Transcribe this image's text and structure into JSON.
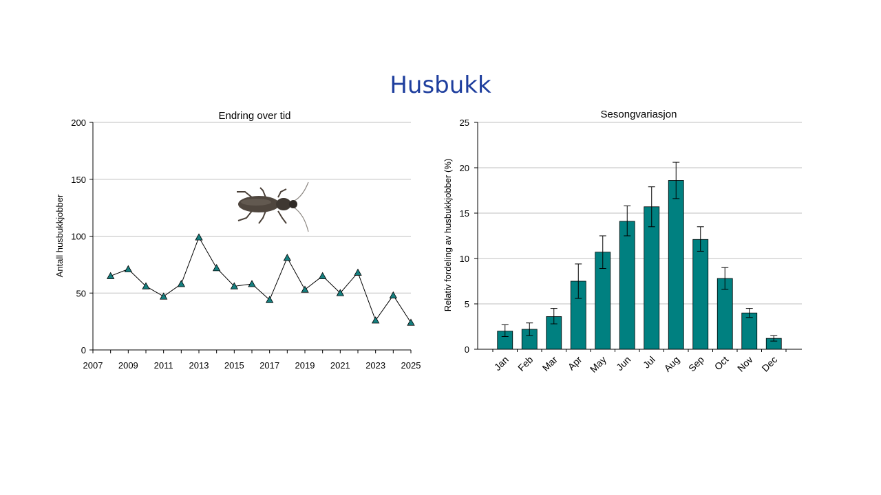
{
  "page": {
    "title": "Husbukk"
  },
  "colors": {
    "title": "#1f3f9e",
    "marker": "#168080",
    "bar": "#008080",
    "line": "#000000",
    "grid": "#bfbfbf"
  },
  "icons": {
    "beetle": "longhorn-beetle-icon"
  },
  "chart_data": [
    {
      "type": "line",
      "title": "Endring over tid",
      "xlabel": "",
      "ylabel": "Antall husbukkjobber",
      "xlim": [
        2007,
        2025
      ],
      "ylim": [
        0,
        200
      ],
      "x_ticks": [
        "2007",
        "2009",
        "2011",
        "2013",
        "2015",
        "2017",
        "2019",
        "2021",
        "2023",
        "2025"
      ],
      "y_ticks": [
        "0",
        "50",
        "100",
        "150",
        "200"
      ],
      "grid": true,
      "marker": "triangle",
      "series": [
        {
          "x": [
            2008,
            2009,
            2010,
            2011,
            2012,
            2013,
            2014,
            2015,
            2016,
            2017,
            2018,
            2019,
            2020,
            2021,
            2022,
            2023,
            2024,
            2025
          ],
          "values": [
            65,
            71,
            56,
            47,
            58,
            99,
            72,
            56,
            58,
            44,
            81,
            53,
            65,
            50,
            68,
            26,
            48,
            24
          ]
        }
      ]
    },
    {
      "type": "bar",
      "title": "Sesongvariasjon",
      "xlabel": "",
      "ylabel": "Relativ fordeling av husbukkjobber (%)",
      "ylim": [
        0,
        25
      ],
      "y_ticks": [
        "0",
        "5",
        "10",
        "15",
        "20",
        "25"
      ],
      "grid": true,
      "categories": [
        "Jan",
        "Feb",
        "Mar",
        "Apr",
        "May",
        "Jun",
        "Jul",
        "Aug",
        "Sep",
        "Oct",
        "Nov",
        "Dec"
      ],
      "values": [
        2.0,
        2.2,
        3.6,
        7.5,
        10.7,
        14.1,
        15.7,
        18.6,
        12.1,
        7.8,
        4.0,
        1.2
      ],
      "error_low": [
        1.4,
        1.5,
        2.8,
        5.6,
        8.9,
        12.5,
        13.5,
        16.6,
        10.8,
        6.6,
        3.5,
        0.9
      ],
      "error_high": [
        2.7,
        2.9,
        4.5,
        9.4,
        12.5,
        15.8,
        17.9,
        20.6,
        13.5,
        9.0,
        4.5,
        1.5
      ]
    }
  ]
}
